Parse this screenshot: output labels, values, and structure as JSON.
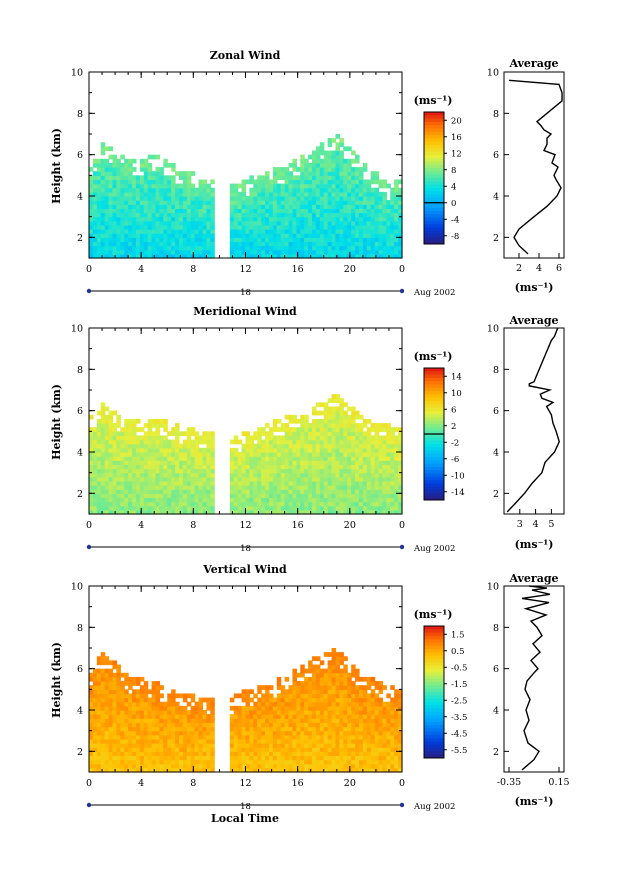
{
  "figure": {
    "date_label": "Aug 2002",
    "day_label": "18",
    "xlabel_bottom": "Local Time",
    "x_ticks": [
      "0",
      "4",
      "8",
      "12",
      "16",
      "20",
      "0"
    ],
    "y_ticks": [
      "2",
      "4",
      "6",
      "8",
      "10"
    ],
    "unit_label": "(ms⁻¹)",
    "avg_unit": "(ms⁻¹)"
  },
  "chart_data": [
    {
      "type": "heatmap",
      "title": "Zonal Wind",
      "ylabel": "Height (km)",
      "xlabel": "",
      "xlim": [
        0,
        24
      ],
      "ylim": [
        1,
        10
      ],
      "data_gap_hours": [
        9.7,
        10.8
      ],
      "colorbar": {
        "unit": "(ms⁻¹)",
        "ticks": [
          "20",
          "16",
          "12",
          "8",
          "4",
          "0",
          "-4",
          "-8"
        ],
        "range": [
          -10,
          22
        ]
      },
      "dominant_color_range": [
        0,
        8
      ],
      "top_height_profile_km": [
        [
          0,
          5.3
        ],
        [
          1,
          6.5
        ],
        [
          3,
          5.6
        ],
        [
          5,
          5.9
        ],
        [
          8,
          5.0
        ],
        [
          11,
          4.4
        ],
        [
          13,
          5.0
        ],
        [
          15,
          5.4
        ],
        [
          17,
          6.1
        ],
        [
          18,
          6.5
        ],
        [
          19,
          6.9
        ],
        [
          21,
          5.6
        ],
        [
          23,
          4.5
        ],
        [
          24,
          4.8
        ]
      ],
      "average_profile": {
        "title": "Average",
        "xticks": [
          "2",
          "4",
          "6"
        ],
        "xlim": [
          0.5,
          6.5
        ],
        "x": [
          2.9,
          2.0,
          1.5,
          2.0,
          3.5,
          4.8,
          5.8,
          6.2,
          5.7,
          5.5,
          5.9,
          5.3,
          5.6,
          4.5,
          4.8,
          4.8,
          5.2,
          4.5,
          4.2,
          3.8,
          6.3,
          6.3,
          6.0,
          1.0
        ],
        "y": [
          1.2,
          1.6,
          2.0,
          2.4,
          3.0,
          3.5,
          4.0,
          4.4,
          4.8,
          5.0,
          5.4,
          5.6,
          6.0,
          6.2,
          6.5,
          6.8,
          7.0,
          7.2,
          7.4,
          7.6,
          8.6,
          9.0,
          9.4,
          9.6
        ]
      }
    },
    {
      "type": "heatmap",
      "title": "Meridional Wind",
      "ylabel": "Height (km)",
      "xlabel": "",
      "xlim": [
        0,
        24
      ],
      "ylim": [
        1,
        10
      ],
      "data_gap_hours": [
        9.7,
        10.8
      ],
      "colorbar": {
        "unit": "(ms⁻¹)",
        "ticks": [
          "14",
          "10",
          "6",
          "2",
          "-2",
          "-6",
          "-10",
          "-14"
        ],
        "range": [
          -16,
          16
        ]
      },
      "dominant_color_range": [
        0,
        6
      ],
      "top_height_profile_km": [
        [
          0,
          5.6
        ],
        [
          1,
          6.3
        ],
        [
          3,
          5.5
        ],
        [
          5,
          5.6
        ],
        [
          8,
          5.0
        ],
        [
          11,
          4.6
        ],
        [
          13,
          5.1
        ],
        [
          15,
          5.6
        ],
        [
          17,
          6.1
        ],
        [
          18,
          6.3
        ],
        [
          19,
          6.7
        ],
        [
          21,
          5.6
        ],
        [
          23,
          5.2
        ],
        [
          24,
          5.0
        ]
      ],
      "average_profile": {
        "title": "Average",
        "xticks": [
          "3",
          "4",
          "5"
        ],
        "xlim": [
          2.0,
          5.8
        ],
        "x": [
          2.2,
          2.7,
          3.3,
          3.8,
          4.4,
          4.6,
          5.2,
          5.5,
          5.3,
          5.1,
          5.0,
          4.7,
          5.1,
          4.4,
          4.3,
          4.9,
          3.6,
          3.6,
          3.9,
          5.0,
          5.2,
          5.4
        ],
        "y": [
          1.1,
          1.5,
          2.0,
          2.5,
          3.0,
          3.5,
          4.0,
          4.5,
          5.0,
          5.4,
          5.8,
          6.2,
          6.4,
          6.6,
          6.8,
          7.0,
          7.2,
          7.3,
          7.4,
          9.4,
          9.6,
          10.0
        ]
      }
    },
    {
      "type": "heatmap",
      "title": "Vertical Wind",
      "ylabel": "Height (km)",
      "xlabel": "Local Time",
      "xlim": [
        0,
        24
      ],
      "ylim": [
        1,
        10
      ],
      "data_gap_hours": [
        9.7,
        10.8
      ],
      "colorbar": {
        "unit": "(ms⁻¹)",
        "ticks": [
          "1.5",
          "0.5",
          "-0.5",
          "-1.5",
          "-2.5",
          "-3.5",
          "-4.5",
          "-5.5"
        ],
        "range": [
          -6.5,
          2.0
        ]
      },
      "dominant_color_range": [
        -0.5,
        1.0
      ],
      "top_height_profile_km": [
        [
          0,
          5.4
        ],
        [
          1,
          6.8
        ],
        [
          3,
          5.6
        ],
        [
          5,
          5.3
        ],
        [
          8,
          4.6
        ],
        [
          11,
          4.6
        ],
        [
          13,
          5.1
        ],
        [
          15,
          5.5
        ],
        [
          17,
          6.4
        ],
        [
          18,
          6.7
        ],
        [
          19,
          6.9
        ],
        [
          21,
          5.6
        ],
        [
          23,
          5.1
        ],
        [
          24,
          5.0
        ]
      ],
      "average_profile": {
        "title": "Average",
        "xticks": [
          "-0.35",
          "0.15"
        ],
        "xlim": [
          -0.4,
          0.2
        ],
        "x": [
          -0.22,
          -0.1,
          -0.05,
          -0.16,
          -0.2,
          -0.15,
          -0.18,
          -0.14,
          -0.19,
          -0.17,
          -0.1,
          -0.06,
          -0.13,
          -0.04,
          -0.11,
          -0.02,
          -0.07,
          -0.13,
          0.02,
          -0.18,
          0.05,
          -0.22,
          0.06,
          -0.12,
          0.03,
          -0.15
        ],
        "y": [
          1.1,
          1.6,
          2.0,
          2.4,
          3.0,
          3.5,
          4.0,
          4.5,
          5.0,
          5.4,
          5.8,
          6.0,
          6.4,
          6.8,
          7.2,
          7.6,
          8.0,
          8.3,
          8.6,
          8.9,
          9.2,
          9.4,
          9.6,
          9.8,
          9.9,
          10.0
        ]
      }
    }
  ]
}
